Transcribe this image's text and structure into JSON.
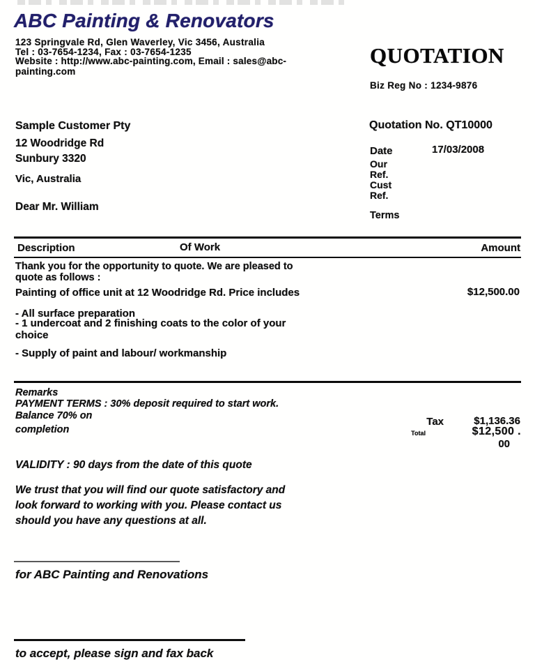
{
  "header": {
    "company_name": "ABC Painting & Renovators",
    "address": "123 Springvale Rd, Glen Waverley, Vic 3456, Australia",
    "tel_fax": "Tel : 03-7654-1234, Fax : 03-7654-1235",
    "website_email": "Website : http://www.abc-painting.com, Email : sales@abc-\npainting.com",
    "doc_title": "QUOTATION",
    "biz_reg": "Biz Reg No : 1234-9876",
    "brand_color": "#24226b"
  },
  "customer": {
    "name": "Sample Customer Pty",
    "address_line1": "12 Woodridge Rd",
    "address_line2": "Sunbury 3320",
    "address_line3": "Vic, Australia",
    "salutation": "Dear Mr. William"
  },
  "quote_info": {
    "quotation_no": "Quotation No. QT10000",
    "date_label": "Date",
    "date_value": "17/03/2008",
    "our_ref_label": "Our\nRef.",
    "cust_ref_label": "Cust\nRef.",
    "terms_label": "Terms"
  },
  "table": {
    "headers": [
      "Description",
      "Of Work",
      "Amount"
    ],
    "intro": "Thank you for the opportunity to quote. We are pleased to\nquote as follows :",
    "item": {
      "description": "Painting of office unit at 12 Woodridge Rd. Price includes",
      "amount": "$12,500.00"
    },
    "bullets": [
      "- All surface preparation",
      "- 1 undercoat and 2 finishing coats to the color of your\nchoice",
      "- Supply of paint and labour/ workmanship"
    ]
  },
  "remarks": {
    "title": "Remarks",
    "lines": [
      "PAYMENT TERMS : 30% deposit required to start work.",
      "Balance 70% on",
      "completion"
    ]
  },
  "totals": {
    "tax_label": "Tax",
    "tax_value": "$1,136.36",
    "total_label": "Total",
    "total_value": "$12,500 .",
    "total_cents": "00"
  },
  "footer": {
    "validity": "VALIDITY : 90 days from the date of this quote",
    "closing": "We trust that you will find our quote satisfactory and\nlook forward to working with you. Please contact us\nshould you have any questions at all.",
    "signature1_label": "for ABC Painting and Renovations",
    "signature2_label": "to accept, please sign and fax back"
  }
}
